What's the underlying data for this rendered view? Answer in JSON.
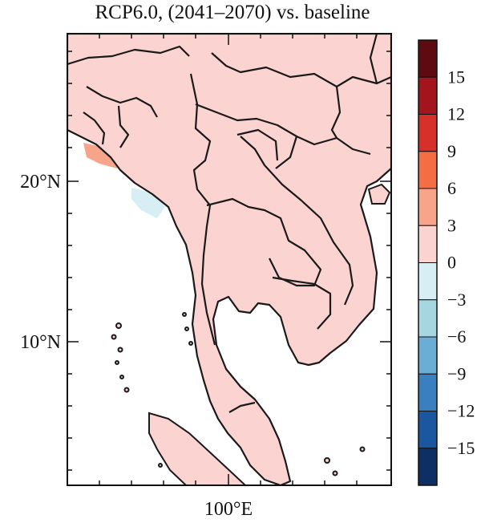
{
  "title": "RCP6.0, (2041–2070) vs. baseline",
  "axes": {
    "x_tick_label": "100°E",
    "y_tick_labels": [
      "20°N",
      "10°N"
    ]
  },
  "colorbar": {
    "labels": [
      "15",
      "12",
      "9",
      "6",
      "3",
      "0",
      "−3",
      "−6",
      "−9",
      "−12",
      "−15"
    ],
    "colors": [
      "#5e0a10",
      "#a4141c",
      "#d7302a",
      "#f46d43",
      "#f7a48a",
      "#fbd3d0",
      "#d7eef5",
      "#a6d6e0",
      "#6aaed6",
      "#3a7fc0",
      "#1a57a0",
      "#0d2f63"
    ]
  },
  "map_colors": {
    "land_base": "#fbd3d0",
    "warm_moderate": "#f7a48a",
    "warm_strong": "#f46d43",
    "cool_light": "#d7eef5",
    "ocean": "#ffffff",
    "border": "#1a1a1a"
  }
}
